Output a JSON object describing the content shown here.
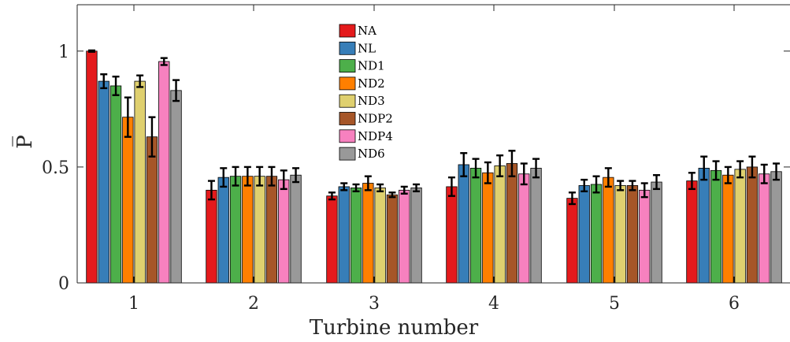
{
  "chart_data": {
    "type": "bar",
    "xlabel": "Turbine number",
    "ylabel": "P̅",
    "ylim": [
      0,
      1.2
    ],
    "yticks": [
      0,
      0.5,
      1
    ],
    "ytick_labels": [
      "0",
      "0.5",
      "1"
    ],
    "categories": [
      "1",
      "2",
      "3",
      "4",
      "5",
      "6"
    ],
    "grid": false,
    "legend_position": "top-center",
    "series": [
      {
        "name": "NA",
        "color": "#e41a1c",
        "values": [
          1.0,
          0.4,
          0.375,
          0.415,
          0.365,
          0.44
        ],
        "errors": [
          0.003,
          0.04,
          0.015,
          0.04,
          0.025,
          0.035
        ]
      },
      {
        "name": "NL",
        "color": "#377eb8",
        "values": [
          0.87,
          0.455,
          0.415,
          0.51,
          0.42,
          0.495
        ],
        "errors": [
          0.03,
          0.04,
          0.015,
          0.05,
          0.025,
          0.05
        ]
      },
      {
        "name": "ND1",
        "color": "#4daf4a",
        "values": [
          0.85,
          0.46,
          0.41,
          0.495,
          0.425,
          0.485
        ],
        "errors": [
          0.04,
          0.04,
          0.015,
          0.04,
          0.035,
          0.04
        ]
      },
      {
        "name": "ND2",
        "color": "#ff7f00",
        "values": [
          0.715,
          0.46,
          0.43,
          0.475,
          0.455,
          0.465
        ],
        "errors": [
          0.085,
          0.04,
          0.03,
          0.045,
          0.04,
          0.035
        ]
      },
      {
        "name": "ND3",
        "color": "#dfd06f",
        "values": [
          0.87,
          0.46,
          0.41,
          0.505,
          0.42,
          0.49
        ],
        "errors": [
          0.025,
          0.04,
          0.015,
          0.045,
          0.02,
          0.035
        ]
      },
      {
        "name": "NDP2",
        "color": "#a65628",
        "values": [
          0.63,
          0.46,
          0.38,
          0.515,
          0.42,
          0.5
        ],
        "errors": [
          0.085,
          0.04,
          0.01,
          0.055,
          0.02,
          0.045
        ]
      },
      {
        "name": "NDP4",
        "color": "#f781bf",
        "values": [
          0.955,
          0.445,
          0.4,
          0.47,
          0.4,
          0.47
        ],
        "errors": [
          0.015,
          0.04,
          0.015,
          0.045,
          0.03,
          0.04
        ]
      },
      {
        "name": "ND6",
        "color": "#999999",
        "values": [
          0.83,
          0.465,
          0.41,
          0.495,
          0.435,
          0.48
        ],
        "errors": [
          0.045,
          0.03,
          0.015,
          0.04,
          0.03,
          0.035
        ]
      }
    ]
  }
}
